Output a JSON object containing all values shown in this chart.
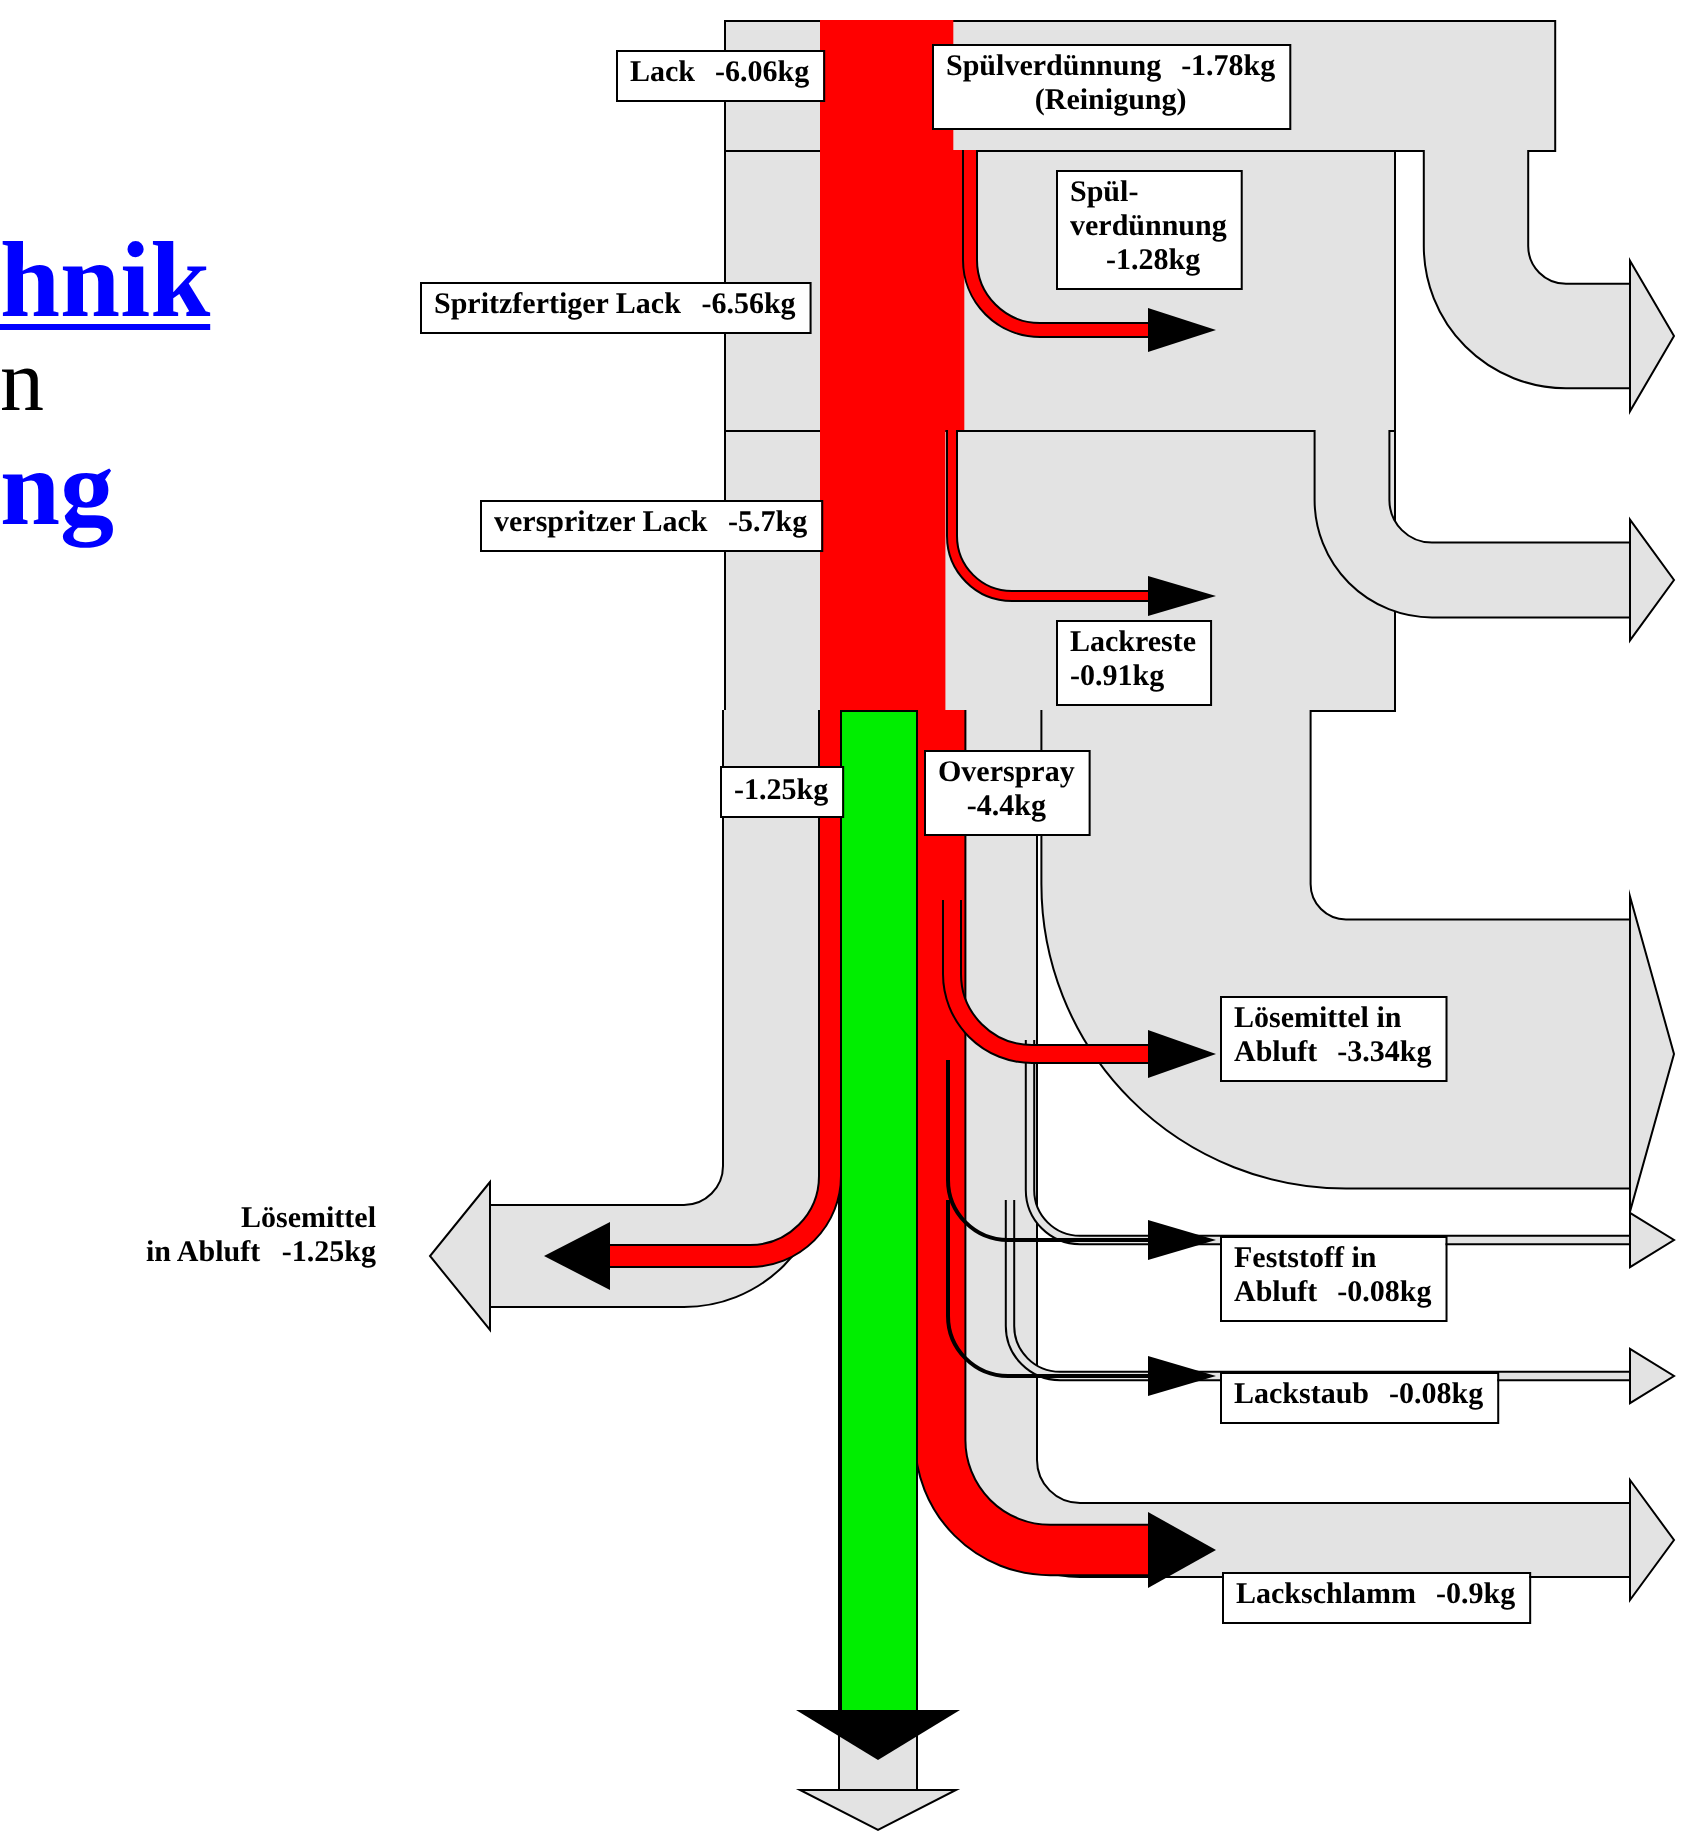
{
  "chart_data": {
    "type": "other",
    "categories": [
      "Lack",
      "Spülverdünnung",
      "Spül-verdünnung",
      "Spritzfertiger Lack",
      "verspritzer Lack",
      "Lackreste",
      "Overspray",
      "Lösemittel in Abluft",
      "Feststoff in Abluft",
      "Lackstaub",
      "Lackschlamm",
      "Lösemittel in Abluft"
    ],
    "values": [
      -6.06,
      -1.78,
      -1.28,
      -6.56,
      -5.7,
      -0.91,
      -4.4,
      -3.34,
      -0.08,
      -0.08,
      -0.9,
      -1.25
    ],
    "value_labels": [
      "-6.06kg",
      "-1.78kg",
      "-1.28kg",
      "-6.56kg",
      "-5.7kg",
      "-0.91kg",
      "-4.4kg",
      "-3.34kg",
      "-0.08kg",
      "-0.08kg",
      "-0.9kg",
      "-1.25kg"
    ],
    "annotations": [
      "(Reinigung)",
      "-1.25kg",
      "hnik",
      "n",
      "ng"
    ]
  }
}
